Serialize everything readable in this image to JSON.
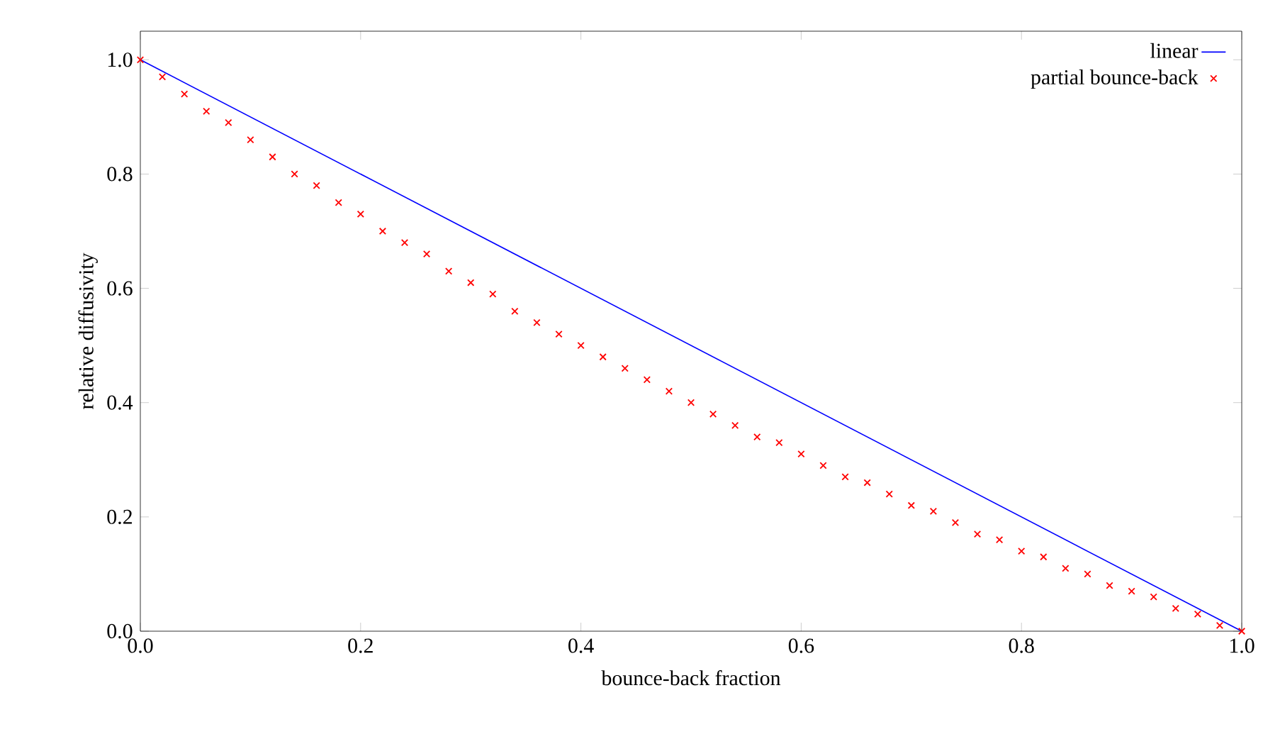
{
  "chart_data": {
    "type": "line",
    "xlabel": "bounce-back fraction",
    "ylabel": "relative diffusivity",
    "xlim": [
      0,
      1
    ],
    "ylim": [
      0,
      1.05
    ],
    "xticks": [
      {
        "value": 0,
        "label": "0.0"
      },
      {
        "value": 0.2,
        "label": "0.2"
      },
      {
        "value": 0.4,
        "label": "0.4"
      },
      {
        "value": 0.6,
        "label": "0.6"
      },
      {
        "value": 0.8,
        "label": "0.8"
      },
      {
        "value": 1,
        "label": "1.0"
      }
    ],
    "yticks": [
      {
        "value": 0,
        "label": "0.0"
      },
      {
        "value": 0.2,
        "label": "0.2"
      },
      {
        "value": 0.4,
        "label": "0.4"
      },
      {
        "value": 0.6,
        "label": "0.6"
      },
      {
        "value": 0.8,
        "label": "0.8"
      },
      {
        "value": 1,
        "label": "1.0"
      }
    ],
    "legend": "top right",
    "grid": false,
    "series": [
      {
        "name": "linear",
        "color": "#0000ff",
        "marker": "none",
        "line_style": "solid",
        "x": [
          0,
          1
        ],
        "values": [
          1,
          0
        ]
      },
      {
        "name": "partial bounce-back",
        "type": "scatter",
        "color": "#ff0000",
        "marker": "cross",
        "x": [
          0,
          0.02,
          0.04,
          0.06,
          0.08,
          0.1,
          0.12,
          0.14,
          0.16,
          0.18,
          0.2,
          0.22,
          0.24,
          0.26,
          0.28,
          0.3,
          0.32,
          0.34,
          0.36,
          0.38,
          0.4,
          0.42,
          0.44,
          0.46,
          0.48,
          0.5,
          0.52,
          0.54,
          0.56,
          0.58,
          0.6,
          0.62,
          0.64,
          0.66,
          0.68,
          0.7,
          0.72,
          0.74,
          0.76,
          0.78,
          0.8,
          0.82,
          0.84,
          0.86,
          0.88,
          0.9,
          0.92,
          0.94,
          0.96,
          0.98,
          1
        ],
        "values": [
          1,
          0.97,
          0.94,
          0.91,
          0.89,
          0.86,
          0.83,
          0.8,
          0.78,
          0.75,
          0.73,
          0.7,
          0.68,
          0.66,
          0.63,
          0.61,
          0.59,
          0.56,
          0.54,
          0.52,
          0.5,
          0.48,
          0.46,
          0.44,
          0.42,
          0.4,
          0.38,
          0.36,
          0.34,
          0.33,
          0.31,
          0.29,
          0.27,
          0.26,
          0.24,
          0.22,
          0.21,
          0.19,
          0.17,
          0.16,
          0.14,
          0.13,
          0.11,
          0.1,
          0.08,
          0.07,
          0.06,
          0.04,
          0.03,
          0.01,
          0
        ]
      }
    ]
  }
}
